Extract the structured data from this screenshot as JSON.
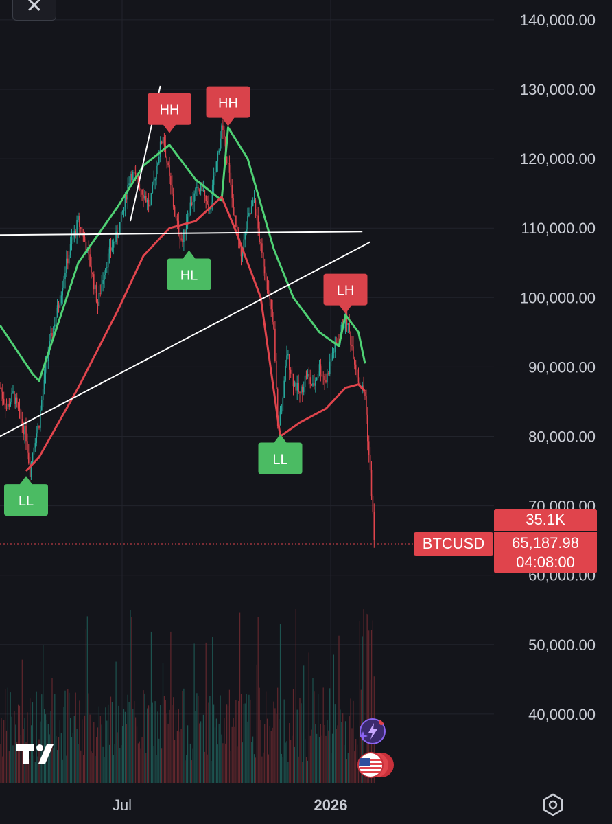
{
  "chart_data": {
    "type": "candlestick",
    "symbol": "BTCUSD",
    "y_axis": {
      "ticks": [
        "140,000.00",
        "130,000.00",
        "120,000.00",
        "110,000.00",
        "100,000.00",
        "90,000.00",
        "80,000.00",
        "70,000.00",
        "60,000.00",
        "50,000.00",
        "40,000.00"
      ],
      "range": [
        35000,
        145000
      ]
    },
    "x_axis": {
      "ticks": [
        "Jul",
        "2026"
      ]
    },
    "price_path": [
      [
        0,
        87000
      ],
      [
        0.5,
        84000
      ],
      [
        1,
        86000
      ],
      [
        1.5,
        83000
      ],
      [
        2,
        80000
      ],
      [
        2.3,
        75000
      ],
      [
        2.6,
        79000
      ],
      [
        3,
        82000
      ],
      [
        3.5,
        90000
      ],
      [
        4,
        95000
      ],
      [
        4.5,
        99000
      ],
      [
        5,
        104000
      ],
      [
        5.5,
        108000
      ],
      [
        6,
        111000
      ],
      [
        6.5,
        108000
      ],
      [
        7,
        104000
      ],
      [
        7.5,
        99000
      ],
      [
        8,
        104000
      ],
      [
        8.5,
        107000
      ],
      [
        9,
        109000
      ],
      [
        9.5,
        113000
      ],
      [
        10,
        118000
      ],
      [
        10.5,
        117000
      ],
      [
        11,
        115000
      ],
      [
        11.5,
        113000
      ],
      [
        12,
        119000
      ],
      [
        12.5,
        123500
      ],
      [
        13,
        117000
      ],
      [
        13.5,
        111000
      ],
      [
        14,
        108000
      ],
      [
        14.5,
        113000
      ],
      [
        15,
        115000
      ],
      [
        15.5,
        116000
      ],
      [
        16,
        112000
      ],
      [
        16.5,
        118000
      ],
      [
        17,
        124500
      ],
      [
        17.5,
        119000
      ],
      [
        18,
        111000
      ],
      [
        18.5,
        106000
      ],
      [
        19,
        111000
      ],
      [
        19.5,
        114000
      ],
      [
        20,
        107000
      ],
      [
        20.5,
        102000
      ],
      [
        21,
        95000
      ],
      [
        21.3,
        82000
      ],
      [
        21.7,
        85000
      ],
      [
        22,
        92000
      ],
      [
        22.5,
        88000
      ],
      [
        23,
        86000
      ],
      [
        23.5,
        89000
      ],
      [
        24,
        87000
      ],
      [
        24.5,
        90000
      ],
      [
        25,
        88000
      ],
      [
        25.5,
        92000
      ],
      [
        26,
        94000
      ],
      [
        26.5,
        97500
      ],
      [
        27,
        93000
      ],
      [
        27.5,
        88000
      ],
      [
        28,
        86000
      ],
      [
        28.2,
        80000
      ],
      [
        28.5,
        72000
      ],
      [
        28.7,
        65188
      ]
    ],
    "series": [
      {
        "name": "",
        "color": "#4fd174",
        "points": [
          [
            0,
            96000
          ],
          [
            2.5,
            89000
          ],
          [
            3,
            88000
          ],
          [
            6,
            105000
          ],
          [
            9,
            113000
          ],
          [
            11,
            119000
          ],
          [
            13,
            122000
          ],
          [
            15,
            117000
          ],
          [
            17,
            114000
          ],
          [
            17.5,
            124500
          ],
          [
            19,
            120000
          ],
          [
            21,
            107000
          ],
          [
            22.5,
            100000
          ],
          [
            24.5,
            95000
          ],
          [
            26,
            93000
          ],
          [
            26.5,
            97500
          ],
          [
            27.5,
            95000
          ],
          [
            28,
            90500
          ]
        ]
      },
      {
        "name": "",
        "color": "#e0444c",
        "points": [
          [
            2,
            75000
          ],
          [
            3,
            77000
          ],
          [
            6,
            87000
          ],
          [
            9,
            98000
          ],
          [
            11,
            106000
          ],
          [
            13,
            110000
          ],
          [
            15,
            111000
          ],
          [
            17,
            114500
          ],
          [
            18,
            110000
          ],
          [
            20,
            100000
          ],
          [
            21.5,
            80000
          ],
          [
            23,
            82000
          ],
          [
            25,
            84000
          ],
          [
            26.5,
            87000
          ],
          [
            27.5,
            87500
          ],
          [
            28,
            86500
          ]
        ]
      }
    ],
    "trendlines": [
      {
        "points": [
          [
            0,
            109000
          ],
          [
            27.8,
            109500
          ]
        ]
      },
      {
        "points": [
          [
            0,
            80000
          ],
          [
            28.4,
            108000
          ]
        ]
      },
      {
        "points": [
          [
            10,
            111000
          ],
          [
            12.3,
            130500
          ]
        ]
      }
    ],
    "annotations": [
      {
        "label": "HH",
        "x": 13,
        "y": 123500,
        "kind": "high"
      },
      {
        "label": "HH",
        "x": 17.5,
        "y": 124500,
        "kind": "high"
      },
      {
        "label": "LH",
        "x": 26.5,
        "y": 97500,
        "kind": "high"
      },
      {
        "label": "HL",
        "x": 14.5,
        "y": 107000,
        "kind": "low"
      },
      {
        "label": "LL",
        "x": 2,
        "y": 74500,
        "kind": "low"
      },
      {
        "label": "LL",
        "x": 21.5,
        "y": 80500,
        "kind": "low"
      }
    ],
    "last_price": 65187.98,
    "last_price_label": "65,187.98",
    "volume_label": "35.1K",
    "countdown": "04:08:00",
    "grid": true
  },
  "colors": {
    "up": "#26a69a",
    "down": "#e0444c",
    "high_marker": "#d9434b",
    "low_marker": "#4bbb63"
  },
  "icons": [
    "close-icon",
    "tradingview-logo-icon",
    "settings-hexagon-icon",
    "ai-assistant-icon",
    "us-flag-icon"
  ]
}
